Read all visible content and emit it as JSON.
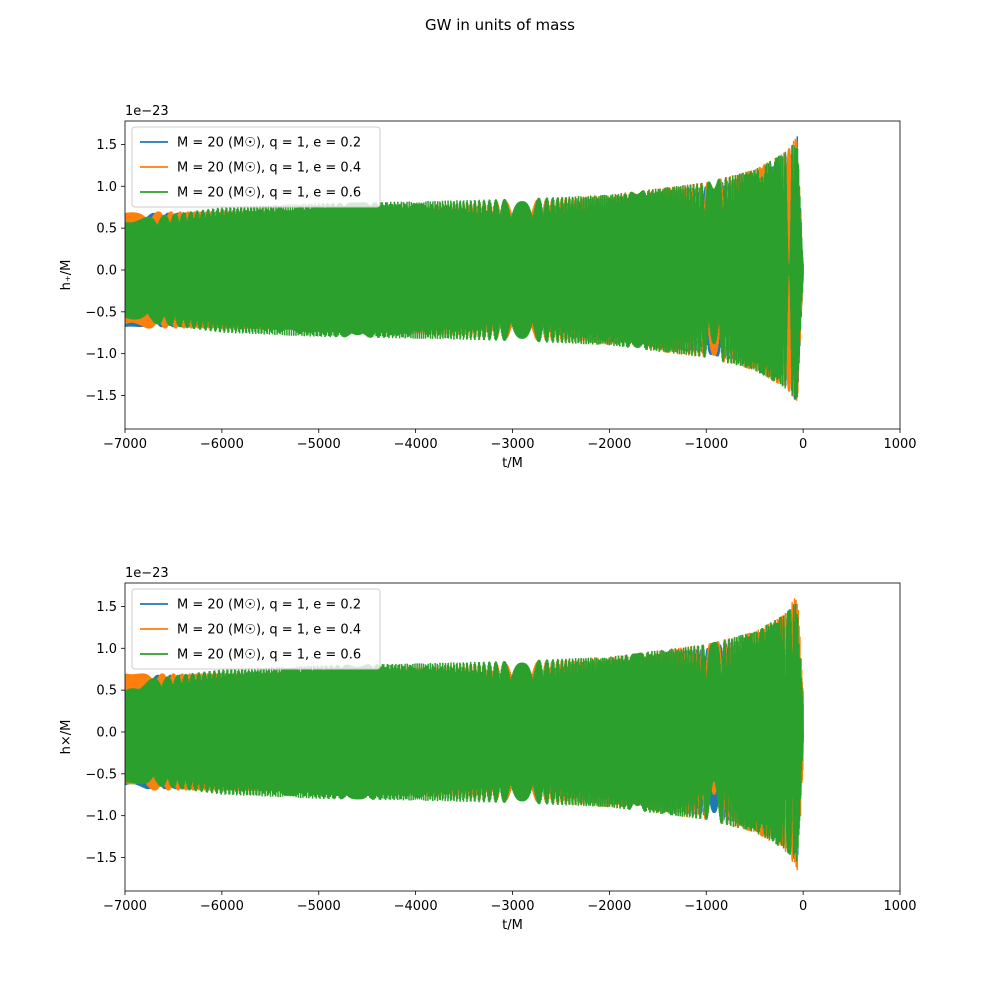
{
  "figure_title": "GW in units of mass",
  "chart_data": [
    {
      "type": "line",
      "xlabel": "t/M",
      "ylabel": "h₊/M",
      "offset_text": "1e−23",
      "xlim": [
        -7000,
        1000
      ],
      "ylim": [
        -1.9,
        1.78
      ],
      "xticks": [
        -7000,
        -6000,
        -5000,
        -4000,
        -3000,
        -2000,
        -1000,
        0,
        1000
      ],
      "xtick_labels": [
        "−7000",
        "−6000",
        "−5000",
        "−4000",
        "−3000",
        "−2000",
        "−1000",
        "0",
        "1000"
      ],
      "yticks": [
        -1.5,
        -1.0,
        -0.5,
        0.0,
        0.5,
        1.0,
        1.5
      ],
      "ytick_labels": [
        "−1.5",
        "−1.0",
        "−0.5",
        "0.0",
        "0.5",
        "1.0",
        "1.5"
      ],
      "grid": false,
      "legend_position": "top-left",
      "series": [
        {
          "name": "M = 20 (M☉), q = 1, e = 0.2",
          "color": "#1f77b4",
          "x": [
            -7000,
            -6000,
            -5000,
            -4000,
            -3000,
            -2000,
            -1000,
            -500,
            -200,
            -60,
            0
          ],
          "y_envelope": [
            0.68,
            0.69,
            0.7,
            0.73,
            0.79,
            0.86,
            1.0,
            1.15,
            1.35,
            1.6,
            0.05
          ],
          "phase": 0
        },
        {
          "name": "M = 20 (M☉), q = 1, e = 0.4",
          "color": "#ff7f0e",
          "x": [
            -7000,
            -6000,
            -5000,
            -4000,
            -3000,
            -2000,
            -1000,
            -500,
            -200,
            -60,
            0
          ],
          "y_envelope": [
            0.7,
            0.7,
            0.72,
            0.77,
            0.82,
            0.9,
            1.05,
            1.2,
            1.4,
            1.6,
            0.1
          ],
          "phase": 1.6
        },
        {
          "name": "M = 20 (M☉), q = 1, e = 0.6",
          "color": "#2ca02c",
          "x": [
            -7000,
            -6000,
            -5000,
            -4000,
            -3000,
            -2000,
            -1000,
            -500,
            -200,
            -60,
            0
          ],
          "y_envelope": [
            0.6,
            0.75,
            0.8,
            0.82,
            0.85,
            0.9,
            1.05,
            1.2,
            1.4,
            1.55,
            0.08
          ],
          "phase": 3.4
        }
      ]
    },
    {
      "type": "line",
      "xlabel": "t/M",
      "ylabel": "h×/M",
      "offset_text": "1e−23",
      "xlim": [
        -7000,
        1000
      ],
      "ylim": [
        -1.9,
        1.78
      ],
      "xticks": [
        -7000,
        -6000,
        -5000,
        -4000,
        -3000,
        -2000,
        -1000,
        0,
        1000
      ],
      "xtick_labels": [
        "−7000",
        "−6000",
        "−5000",
        "−4000",
        "−3000",
        "−2000",
        "−1000",
        "0",
        "1000"
      ],
      "yticks": [
        -1.5,
        -1.0,
        -0.5,
        0.0,
        0.5,
        1.0,
        1.5
      ],
      "ytick_labels": [
        "−1.5",
        "−1.0",
        "−0.5",
        "0.0",
        "0.5",
        "1.0",
        "1.5"
      ],
      "grid": false,
      "legend_position": "top-left",
      "series": [
        {
          "name": "M = 20 (M☉), q = 1, e = 0.2",
          "color": "#1f77b4",
          "x": [
            -7000,
            -6000,
            -5000,
            -4000,
            -3000,
            -2000,
            -1000,
            -500,
            -200,
            -60,
            0
          ],
          "y_envelope": [
            0.68,
            0.69,
            0.7,
            0.73,
            0.79,
            0.86,
            1.0,
            1.15,
            1.35,
            1.6,
            0.05
          ],
          "phase": 1.57
        },
        {
          "name": "M = 20 (M☉), q = 1, e = 0.4",
          "color": "#ff7f0e",
          "x": [
            -7000,
            -6000,
            -5000,
            -4000,
            -3000,
            -2000,
            -1000,
            -500,
            -200,
            -60,
            0
          ],
          "y_envelope": [
            0.7,
            0.7,
            0.72,
            0.77,
            0.82,
            0.9,
            1.05,
            1.2,
            1.4,
            1.65,
            0.5
          ],
          "phase": 3.2
        },
        {
          "name": "M = 20 (M☉), q = 1, e = 0.6",
          "color": "#2ca02c",
          "x": [
            -7000,
            -6000,
            -5000,
            -4000,
            -3000,
            -2000,
            -1000,
            -500,
            -200,
            -60,
            0
          ],
          "y_envelope": [
            0.6,
            0.75,
            0.8,
            0.82,
            0.85,
            0.9,
            1.05,
            1.2,
            1.4,
            1.55,
            0.3
          ],
          "phase": 5.0
        }
      ]
    }
  ]
}
